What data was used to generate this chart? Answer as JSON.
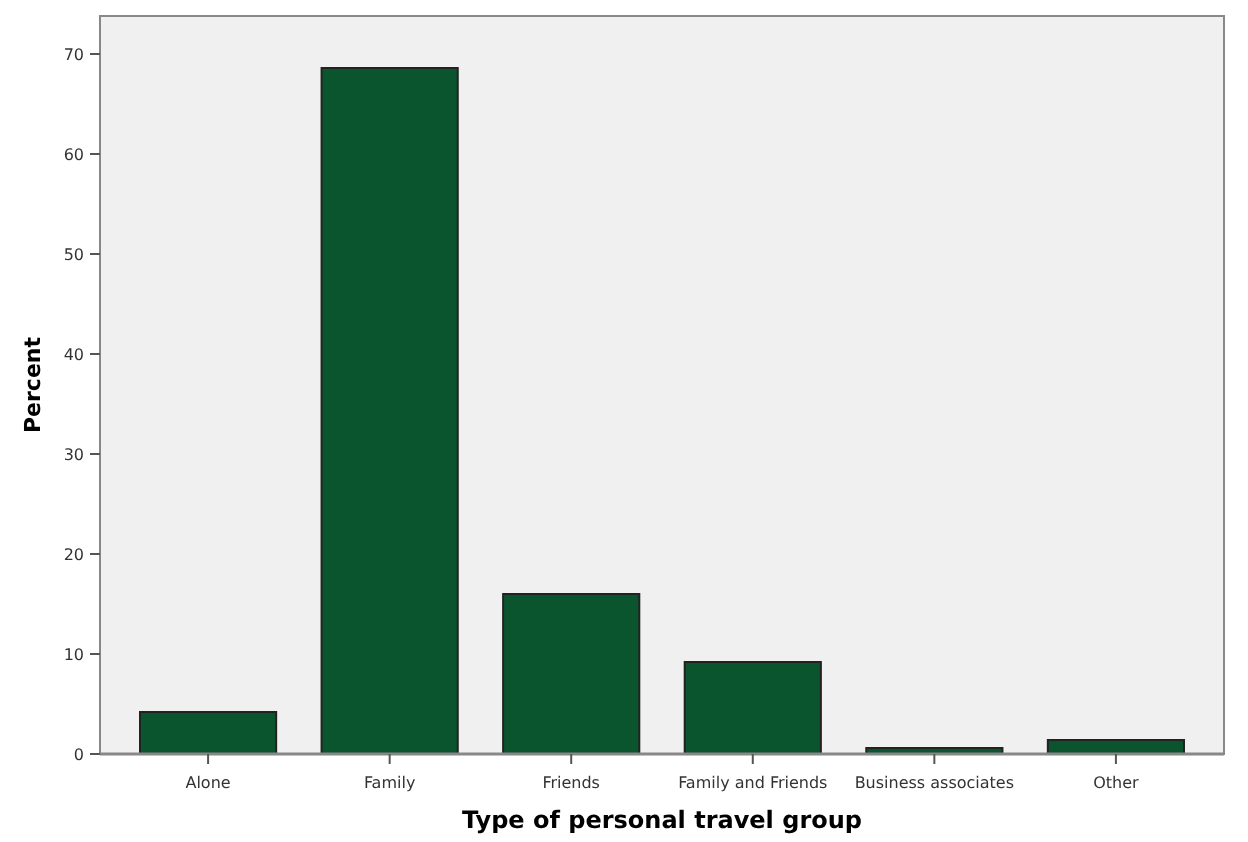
{
  "chart_data": {
    "type": "bar",
    "xlabel": "Type of personal travel group",
    "ylabel": "Percent",
    "categories": [
      "Alone",
      "Family",
      "Friends",
      "Family and Friends",
      "Business associates",
      "Other"
    ],
    "values": [
      4.2,
      68.6,
      16,
      9.2,
      0.6,
      1.4
    ],
    "color": "#0b552e",
    "ylim": [
      0,
      73.8
    ],
    "yticks": [
      0,
      10,
      20,
      30,
      40,
      50,
      60,
      70
    ],
    "grid": false
  }
}
